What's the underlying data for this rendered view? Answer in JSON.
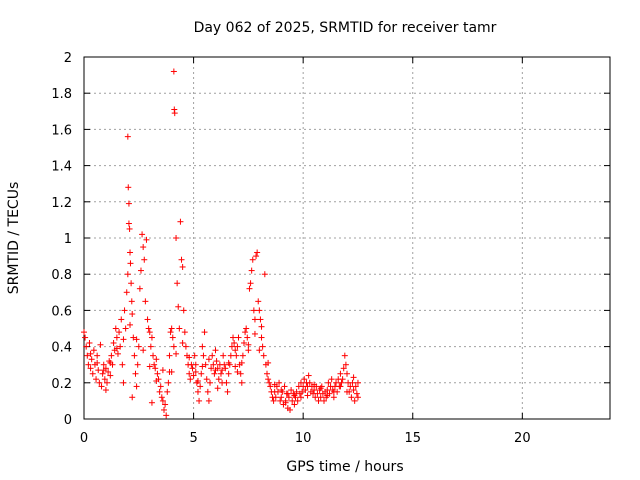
{
  "chart_data": {
    "type": "scatter",
    "title": "Day 062 of 2025, SRMTID for receiver tamr",
    "xlabel": "GPS time / hours",
    "ylabel": "SRMTID / TECUs",
    "xlim": [
      0,
      24
    ],
    "ylim": [
      0,
      2
    ],
    "xticks": [
      "0",
      "5",
      "10",
      "15",
      "20"
    ],
    "yticks": [
      "0",
      "0.2",
      "0.4",
      "0.6",
      "0.8",
      "1",
      "1.2",
      "1.4",
      "1.6",
      "1.8",
      "2"
    ],
    "xtick_values": [
      0,
      5,
      10,
      15,
      20
    ],
    "ytick_values": [
      0,
      0.2,
      0.4,
      0.6,
      0.8,
      1.0,
      1.2,
      1.4,
      1.6,
      1.8,
      2.0
    ],
    "grid": true,
    "marker": "+",
    "series": [
      {
        "name": "SRMTID",
        "color": "#ff0000",
        "points": [
          [
            0.0,
            0.48
          ],
          [
            0.05,
            0.45
          ],
          [
            0.1,
            0.4
          ],
          [
            0.15,
            0.35
          ],
          [
            0.2,
            0.3
          ],
          [
            0.25,
            0.42
          ],
          [
            0.3,
            0.28
          ],
          [
            0.35,
            0.33
          ],
          [
            0.4,
            0.25
          ],
          [
            0.45,
            0.38
          ],
          [
            0.5,
            0.3
          ],
          [
            0.55,
            0.22
          ],
          [
            0.6,
            0.35
          ],
          [
            0.65,
            0.27
          ],
          [
            0.7,
            0.2
          ],
          [
            0.75,
            0.41
          ],
          [
            0.8,
            0.18
          ],
          [
            0.85,
            0.25
          ],
          [
            0.9,
            0.3
          ],
          [
            0.95,
            0.22
          ],
          [
            1.0,
            0.28
          ],
          [
            1.05,
            0.2
          ],
          [
            1.1,
            0.26
          ],
          [
            1.15,
            0.32
          ],
          [
            1.2,
            0.24
          ],
          [
            1.25,
            0.35
          ],
          [
            1.3,
            0.3
          ],
          [
            1.35,
            0.42
          ],
          [
            1.4,
            0.38
          ],
          [
            1.45,
            0.5
          ],
          [
            1.5,
            0.45
          ],
          [
            1.55,
            0.36
          ],
          [
            1.6,
            0.48
          ],
          [
            1.65,
            0.4
          ],
          [
            1.7,
            0.55
          ],
          [
            1.75,
            0.3
          ],
          [
            1.8,
            0.2
          ],
          [
            1.85,
            0.6
          ],
          [
            1.9,
            0.5
          ],
          [
            1.95,
            0.7
          ],
          [
            2.0,
            0.8
          ],
          [
            2.0,
            1.56
          ],
          [
            2.02,
            1.28
          ],
          [
            2.05,
            1.19
          ],
          [
            2.05,
            1.08
          ],
          [
            2.08,
            1.05
          ],
          [
            2.1,
            0.92
          ],
          [
            2.12,
            0.86
          ],
          [
            2.15,
            0.75
          ],
          [
            2.18,
            0.65
          ],
          [
            2.2,
            0.58
          ],
          [
            2.25,
            0.45
          ],
          [
            2.3,
            0.35
          ],
          [
            2.35,
            0.25
          ],
          [
            2.4,
            0.18
          ],
          [
            2.45,
            0.3
          ],
          [
            2.5,
            0.4
          ],
          [
            2.55,
            0.72
          ],
          [
            2.6,
            0.82
          ],
          [
            2.65,
            1.02
          ],
          [
            2.7,
            0.95
          ],
          [
            2.75,
            0.88
          ],
          [
            2.8,
            0.65
          ],
          [
            2.85,
            0.99
          ],
          [
            2.9,
            0.55
          ],
          [
            2.95,
            0.5
          ],
          [
            3.0,
            0.48
          ],
          [
            3.05,
            0.4
          ],
          [
            3.1,
            0.45
          ],
          [
            3.15,
            0.35
          ],
          [
            3.2,
            0.3
          ],
          [
            3.25,
            0.28
          ],
          [
            3.3,
            0.33
          ],
          [
            3.35,
            0.25
          ],
          [
            3.4,
            0.22
          ],
          [
            3.45,
            0.15
          ],
          [
            3.5,
            0.18
          ],
          [
            3.55,
            0.12
          ],
          [
            3.6,
            0.1
          ],
          [
            3.65,
            0.05
          ],
          [
            3.7,
            0.08
          ],
          [
            3.75,
            0.02
          ],
          [
            3.8,
            0.15
          ],
          [
            3.85,
            0.2
          ],
          [
            3.9,
            0.35
          ],
          [
            3.95,
            0.48
          ],
          [
            4.0,
            0.5
          ],
          [
            4.05,
            0.45
          ],
          [
            4.1,
            0.4
          ],
          [
            4.1,
            1.92
          ],
          [
            4.12,
            1.71
          ],
          [
            4.14,
            1.69
          ],
          [
            4.2,
            1.0
          ],
          [
            4.25,
            0.75
          ],
          [
            4.3,
            0.62
          ],
          [
            4.35,
            0.5
          ],
          [
            4.4,
            1.09
          ],
          [
            4.45,
            0.88
          ],
          [
            4.5,
            0.84
          ],
          [
            4.55,
            0.6
          ],
          [
            4.6,
            0.48
          ],
          [
            4.65,
            0.4
          ],
          [
            4.7,
            0.35
          ],
          [
            4.75,
            0.3
          ],
          [
            4.8,
            0.25
          ],
          [
            4.85,
            0.22
          ],
          [
            4.9,
            0.3
          ],
          [
            4.95,
            0.28
          ],
          [
            5.0,
            0.24
          ],
          [
            5.05,
            0.35
          ],
          [
            5.1,
            0.3
          ],
          [
            5.15,
            0.2
          ],
          [
            5.2,
            0.15
          ],
          [
            5.25,
            0.1
          ],
          [
            5.3,
            0.18
          ],
          [
            5.35,
            0.25
          ],
          [
            5.4,
            0.4
          ],
          [
            5.45,
            0.35
          ],
          [
            5.5,
            0.48
          ],
          [
            5.55,
            0.3
          ],
          [
            5.6,
            0.22
          ],
          [
            5.65,
            0.15
          ],
          [
            5.7,
            0.1
          ],
          [
            5.75,
            0.2
          ],
          [
            5.8,
            0.28
          ],
          [
            5.85,
            0.35
          ],
          [
            5.9,
            0.3
          ],
          [
            5.95,
            0.25
          ],
          [
            6.0,
            0.38
          ],
          [
            6.05,
            0.32
          ],
          [
            6.1,
            0.28
          ],
          [
            6.15,
            0.22
          ],
          [
            6.2,
            0.3
          ],
          [
            6.25,
            0.25
          ],
          [
            6.3,
            0.2
          ],
          [
            6.35,
            0.35
          ],
          [
            6.4,
            0.3
          ],
          [
            6.45,
            0.28
          ],
          [
            6.5,
            0.2
          ],
          [
            6.55,
            0.15
          ],
          [
            6.6,
            0.25
          ],
          [
            6.65,
            0.3
          ],
          [
            6.7,
            0.35
          ],
          [
            6.75,
            0.4
          ],
          [
            6.8,
            0.45
          ],
          [
            6.85,
            0.42
          ],
          [
            6.9,
            0.38
          ],
          [
            6.95,
            0.35
          ],
          [
            7.0,
            0.4
          ],
          [
            7.05,
            0.45
          ],
          [
            7.1,
            0.3
          ],
          [
            7.15,
            0.25
          ],
          [
            7.2,
            0.2
          ],
          [
            7.25,
            0.35
          ],
          [
            7.3,
            0.42
          ],
          [
            7.35,
            0.48
          ],
          [
            7.4,
            0.5
          ],
          [
            7.45,
            0.45
          ],
          [
            7.5,
            0.38
          ],
          [
            7.55,
            0.72
          ],
          [
            7.6,
            0.75
          ],
          [
            7.65,
            0.82
          ],
          [
            7.7,
            0.88
          ],
          [
            7.75,
            0.6
          ],
          [
            7.8,
            0.55
          ],
          [
            7.85,
            0.9
          ],
          [
            7.9,
            0.92
          ],
          [
            7.95,
            0.65
          ],
          [
            8.0,
            0.6
          ],
          [
            8.05,
            0.55
          ],
          [
            8.1,
            0.45
          ],
          [
            8.15,
            0.4
          ],
          [
            8.2,
            0.35
          ],
          [
            8.25,
            0.8
          ],
          [
            8.3,
            0.3
          ],
          [
            8.35,
            0.25
          ],
          [
            8.4,
            0.22
          ],
          [
            8.45,
            0.2
          ],
          [
            8.5,
            0.18
          ],
          [
            8.55,
            0.15
          ],
          [
            8.6,
            0.12
          ],
          [
            8.65,
            0.1
          ],
          [
            8.7,
            0.15
          ],
          [
            8.75,
            0.12
          ],
          [
            8.8,
            0.18
          ],
          [
            8.85,
            0.15
          ],
          [
            8.9,
            0.2
          ],
          [
            8.95,
            0.1
          ],
          [
            9.0,
            0.12
          ],
          [
            9.05,
            0.15
          ],
          [
            9.1,
            0.08
          ],
          [
            9.15,
            0.18
          ],
          [
            9.2,
            0.1
          ],
          [
            9.25,
            0.14
          ],
          [
            9.3,
            0.06
          ],
          [
            9.35,
            0.12
          ],
          [
            9.4,
            0.05
          ],
          [
            9.45,
            0.16
          ],
          [
            9.5,
            0.1
          ],
          [
            9.55,
            0.14
          ],
          [
            9.6,
            0.08
          ],
          [
            9.65,
            0.12
          ],
          [
            9.7,
            0.15
          ],
          [
            9.75,
            0.1
          ],
          [
            9.8,
            0.18
          ],
          [
            9.85,
            0.14
          ],
          [
            9.9,
            0.2
          ],
          [
            9.95,
            0.15
          ],
          [
            10.0,
            0.18
          ],
          [
            10.05,
            0.22
          ],
          [
            10.1,
            0.16
          ],
          [
            10.15,
            0.2
          ],
          [
            10.2,
            0.18
          ],
          [
            10.25,
            0.24
          ],
          [
            10.3,
            0.2
          ],
          [
            10.35,
            0.15
          ],
          [
            10.4,
            0.18
          ],
          [
            10.45,
            0.14
          ],
          [
            10.5,
            0.16
          ],
          [
            10.55,
            0.12
          ],
          [
            10.6,
            0.18
          ],
          [
            10.65,
            0.14
          ],
          [
            10.7,
            0.1
          ],
          [
            10.75,
            0.16
          ],
          [
            10.8,
            0.12
          ],
          [
            10.85,
            0.18
          ],
          [
            10.9,
            0.14
          ],
          [
            10.95,
            0.1
          ],
          [
            11.0,
            0.15
          ],
          [
            11.05,
            0.12
          ],
          [
            11.1,
            0.16
          ],
          [
            11.15,
            0.2
          ],
          [
            11.2,
            0.14
          ],
          [
            11.25,
            0.18
          ],
          [
            11.3,
            0.22
          ],
          [
            11.35,
            0.16
          ],
          [
            11.4,
            0.12
          ],
          [
            11.45,
            0.18
          ],
          [
            11.5,
            0.2
          ],
          [
            11.55,
            0.15
          ],
          [
            11.6,
            0.22
          ],
          [
            11.65,
            0.18
          ],
          [
            11.7,
            0.25
          ],
          [
            11.75,
            0.2
          ],
          [
            11.8,
            0.22
          ],
          [
            11.85,
            0.28
          ],
          [
            11.9,
            0.35
          ],
          [
            11.95,
            0.3
          ],
          [
            12.0,
            0.25
          ],
          [
            12.05,
            0.2
          ],
          [
            12.1,
            0.15
          ],
          [
            12.15,
            0.18
          ],
          [
            12.2,
            0.12
          ],
          [
            12.25,
            0.2
          ],
          [
            12.3,
            0.16
          ],
          [
            12.35,
            0.1
          ],
          [
            12.4,
            0.18
          ],
          [
            12.45,
            0.14
          ],
          [
            12.5,
            0.2
          ],
          [
            12.5,
            0.12
          ],
          [
            0.3,
            0.36
          ],
          [
            0.6,
            0.31
          ],
          [
            0.9,
            0.27
          ],
          [
            1.2,
            0.31
          ],
          [
            1.5,
            0.39
          ],
          [
            1.8,
            0.44
          ],
          [
            2.1,
            0.52
          ],
          [
            2.4,
            0.44
          ],
          [
            2.7,
            0.38
          ],
          [
            3.0,
            0.29
          ],
          [
            3.3,
            0.21
          ],
          [
            3.6,
            0.27
          ],
          [
            3.9,
            0.26
          ],
          [
            4.2,
            0.36
          ],
          [
            4.5,
            0.42
          ],
          [
            4.8,
            0.34
          ],
          [
            5.1,
            0.26
          ],
          [
            5.4,
            0.29
          ],
          [
            5.7,
            0.33
          ],
          [
            6.0,
            0.27
          ],
          [
            6.3,
            0.27
          ],
          [
            6.6,
            0.31
          ],
          [
            6.9,
            0.29
          ],
          [
            7.2,
            0.31
          ],
          [
            7.5,
            0.41
          ],
          [
            7.8,
            0.47
          ],
          [
            8.1,
            0.51
          ],
          [
            8.4,
            0.31
          ],
          [
            8.7,
            0.19
          ],
          [
            9.0,
            0.16
          ],
          [
            9.3,
            0.14
          ],
          [
            9.6,
            0.13
          ],
          [
            9.9,
            0.12
          ],
          [
            10.2,
            0.13
          ],
          [
            10.5,
            0.19
          ],
          [
            10.8,
            0.17
          ],
          [
            11.1,
            0.13
          ],
          [
            11.4,
            0.15
          ],
          [
            11.7,
            0.18
          ],
          [
            12.0,
            0.15
          ],
          [
            12.3,
            0.23
          ],
          [
            1.0,
            0.16
          ],
          [
            2.2,
            0.12
          ],
          [
            3.1,
            0.09
          ],
          [
            4.0,
            0.26
          ],
          [
            5.2,
            0.21
          ],
          [
            6.1,
            0.17
          ],
          [
            7.0,
            0.26
          ],
          [
            8.0,
            0.38
          ],
          [
            9.2,
            0.09
          ]
        ]
      }
    ]
  }
}
